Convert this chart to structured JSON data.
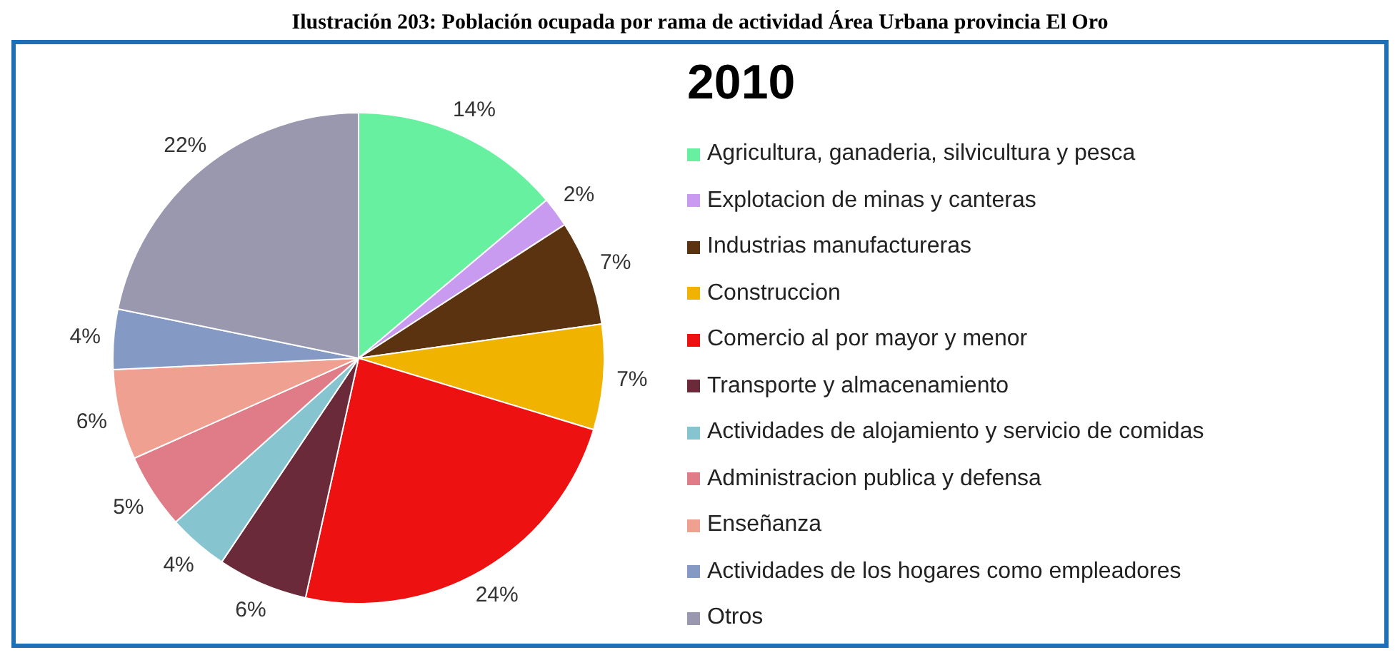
{
  "chart_data": {
    "type": "pie",
    "title": "2010",
    "annotations": [
      "Ilustración 203: Población ocupada por rama de actividad Área Urbana provincia El Oro"
    ],
    "categories": [
      "Agricultura, ganaderia, silvicultura y pesca",
      "Explotacion de minas y canteras",
      "Industrias manufactureras",
      "Construccion",
      "Comercio al por mayor y menor",
      "Transporte y almacenamiento",
      "Actividades de alojamiento y servicio de comidas",
      "Administracion publica y defensa",
      "Enseñanza",
      "Actividades de los hogares como empleadores",
      "Otros"
    ],
    "values": [
      14,
      2,
      7,
      7,
      24,
      6,
      4,
      5,
      6,
      4,
      22
    ],
    "value_labels": [
      "14%",
      "2%",
      "7%",
      "7%",
      "24%",
      "6%",
      "4%",
      "5%",
      "6%",
      "4%",
      "22%"
    ],
    "colors": [
      "#66f0a0",
      "#c89af0",
      "#5c3310",
      "#f0b400",
      "#ee1111",
      "#6b2a3a",
      "#86c4d0",
      "#e07c88",
      "#f0a090",
      "#8499c4",
      "#9a98ae"
    ],
    "legend": "right"
  }
}
